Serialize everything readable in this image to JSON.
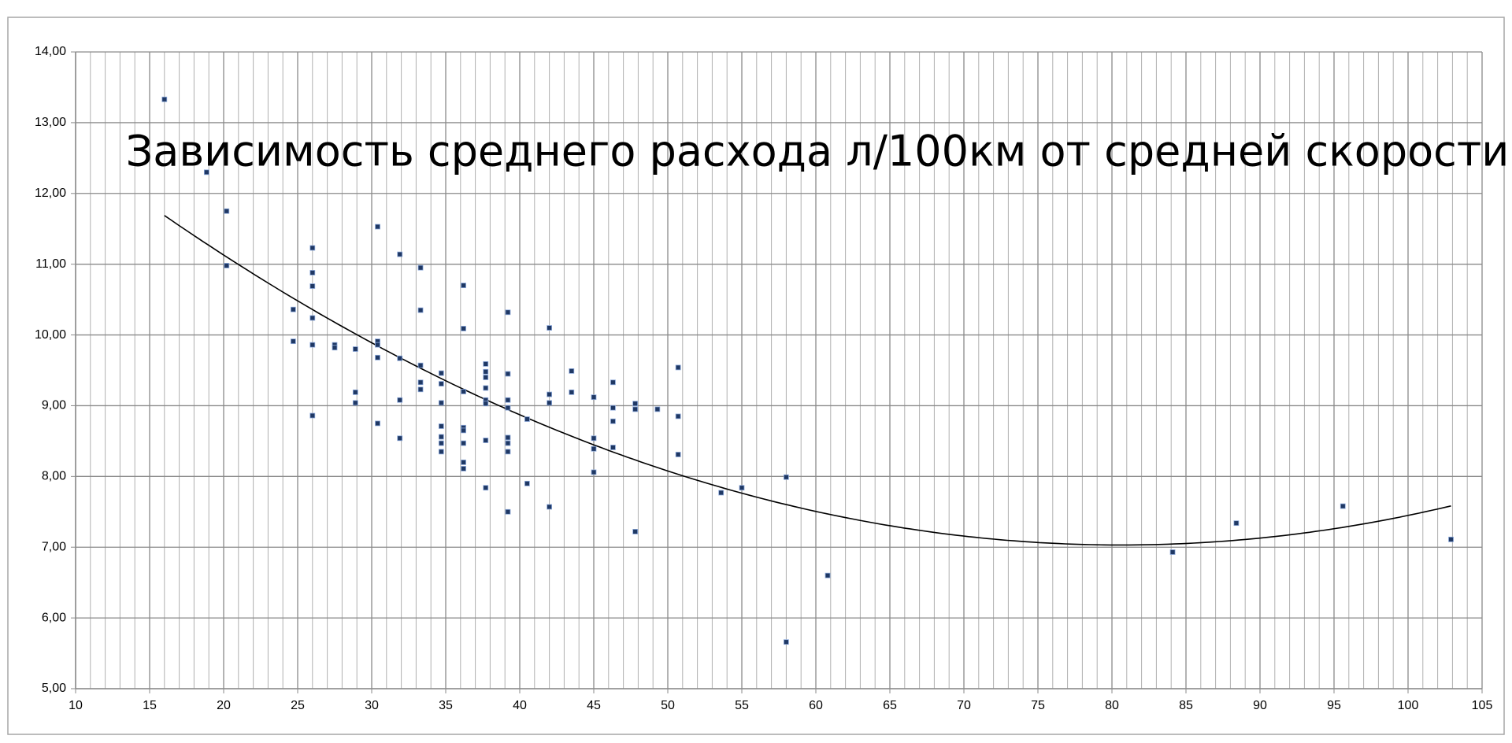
{
  "chart_data": {
    "type": "scatter",
    "title": "Зависимость среднего расхода л/100км от средней скорости",
    "x": [
      16.0,
      18.85,
      20.2,
      20.2,
      24.7,
      24.7,
      26.0,
      26.0,
      26.0,
      26.0,
      26.0,
      26.0,
      27.5,
      27.5,
      28.9,
      28.9,
      28.9,
      30.4,
      30.4,
      30.4,
      30.4,
      30.4,
      31.9,
      31.9,
      31.9,
      31.9,
      33.3,
      33.3,
      33.3,
      33.3,
      33.3,
      34.7,
      34.7,
      34.7,
      34.7,
      34.7,
      34.7,
      34.7,
      36.2,
      36.2,
      36.2,
      36.2,
      36.2,
      36.2,
      36.2,
      36.2,
      37.7,
      37.7,
      37.7,
      37.7,
      37.7,
      37.7,
      37.7,
      37.7,
      39.2,
      39.2,
      39.2,
      39.2,
      39.2,
      39.2,
      39.2,
      39.2,
      40.5,
      40.5,
      42.0,
      42.0,
      42.0,
      42.0,
      43.5,
      43.5,
      45.0,
      45.0,
      45.0,
      45.0,
      46.3,
      46.3,
      46.3,
      46.3,
      47.8,
      47.8,
      47.8,
      49.3,
      50.7,
      50.7,
      50.7,
      53.6,
      55.0,
      58.0,
      58.0,
      60.8,
      84.1,
      88.4,
      95.6,
      102.9
    ],
    "values": [
      13.33,
      12.3,
      11.75,
      10.98,
      10.36,
      9.91,
      11.23,
      10.88,
      10.69,
      10.24,
      9.86,
      8.86,
      9.86,
      9.82,
      9.8,
      9.19,
      9.04,
      11.53,
      9.91,
      9.86,
      9.68,
      8.75,
      11.14,
      9.67,
      9.08,
      8.54,
      10.95,
      10.35,
      9.57,
      9.33,
      9.23,
      9.46,
      9.31,
      9.04,
      8.71,
      8.56,
      8.47,
      8.35,
      10.7,
      10.09,
      9.2,
      8.69,
      8.65,
      8.47,
      8.2,
      8.11,
      9.59,
      9.48,
      9.4,
      9.25,
      9.08,
      9.03,
      8.51,
      7.84,
      10.32,
      9.45,
      9.08,
      8.97,
      8.55,
      8.47,
      8.35,
      7.5,
      8.81,
      7.9,
      10.1,
      9.16,
      9.04,
      7.57,
      9.49,
      9.19,
      9.12,
      8.54,
      8.39,
      8.06,
      9.33,
      8.97,
      8.78,
      8.41,
      9.03,
      8.95,
      7.22,
      8.95,
      9.54,
      8.85,
      8.31,
      7.77,
      7.84,
      7.99,
      5.66,
      6.6,
      6.93,
      7.34,
      7.58,
      7.11
    ],
    "color": "#1f3864",
    "trendline": {
      "type": "polynomial",
      "order": 2,
      "color": "#000000"
    },
    "xlim": [
      10,
      105
    ],
    "xticks": [
      10,
      15,
      20,
      25,
      30,
      35,
      40,
      45,
      50,
      55,
      60,
      65,
      70,
      75,
      80,
      85,
      90,
      95,
      100,
      105
    ],
    "x_minor_per_major": 5,
    "ylim": [
      5,
      14
    ],
    "yticks": [
      {
        "value": 5,
        "label": "5,00"
      },
      {
        "value": 6,
        "label": "6,00"
      },
      {
        "value": 7,
        "label": "7,00"
      },
      {
        "value": 8,
        "label": "8,00"
      },
      {
        "value": 9,
        "label": "9,00"
      },
      {
        "value": 10,
        "label": "10,00"
      },
      {
        "value": 11,
        "label": "11,00"
      },
      {
        "value": 12,
        "label": "12,00"
      },
      {
        "value": 13,
        "label": "13,00"
      },
      {
        "value": 14,
        "label": "14,00"
      }
    ],
    "grid": true
  }
}
